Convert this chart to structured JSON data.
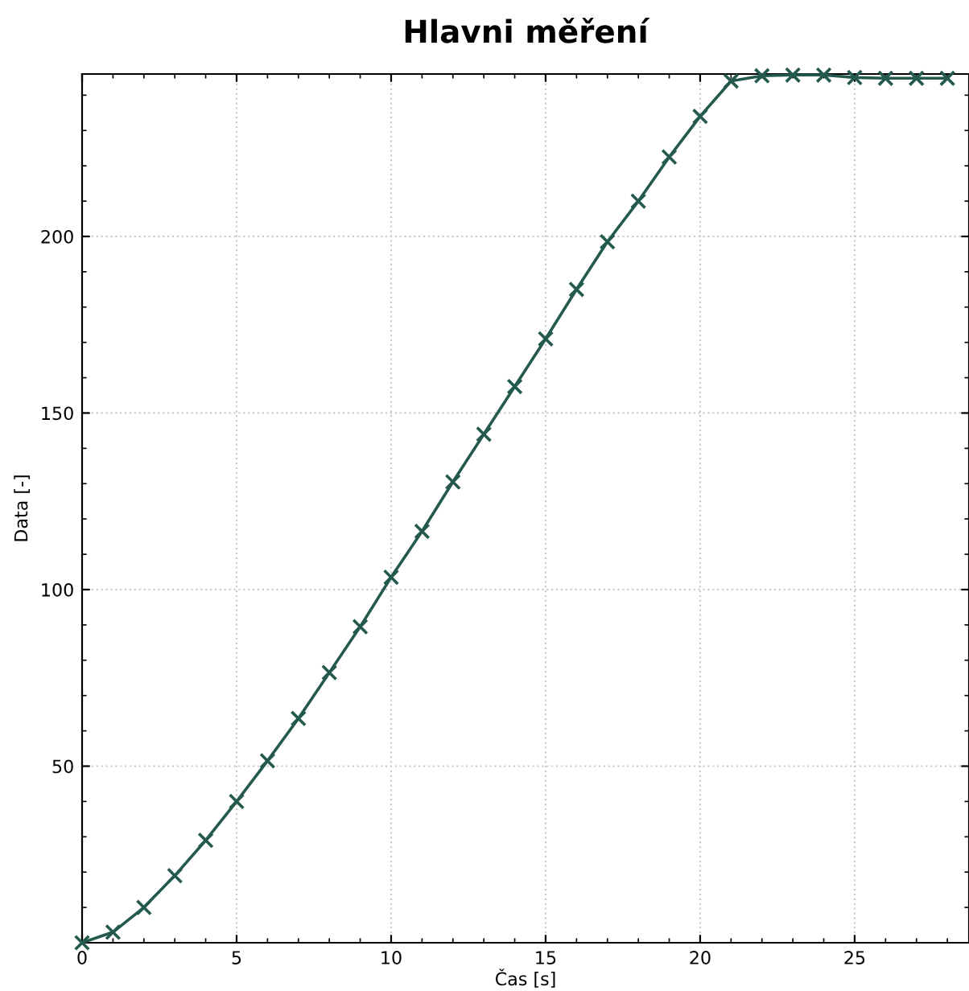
{
  "chart_data": {
    "type": "line",
    "title": "Hlavni měření",
    "xlabel": "Čas [s]",
    "ylabel": "Data [-]",
    "x": [
      0,
      1,
      2,
      3,
      4,
      5,
      6,
      7,
      8,
      9,
      10,
      11,
      12,
      13,
      14,
      15,
      16,
      17,
      18,
      19,
      20,
      21,
      22,
      23,
      24,
      25,
      26,
      27,
      28
    ],
    "series": [
      {
        "color": "#245a4e",
        "values": [
          0,
          3,
          10,
          19,
          29,
          40,
          51.5,
          63.5,
          76.5,
          89.5,
          103.5,
          116.5,
          130.5,
          144,
          157.5,
          171,
          185,
          198.5,
          210,
          222.5,
          234,
          244,
          245.5,
          245.7,
          245.7,
          245,
          244.8,
          244.8,
          244.8
        ]
      }
    ],
    "xlim": [
      0,
      28.7
    ],
    "ylim": [
      0,
      246
    ],
    "xticks": [
      0,
      5,
      10,
      15,
      20,
      25
    ],
    "yticks": [
      50,
      100,
      150,
      200
    ],
    "grid": true,
    "marker": "cross",
    "line_style": "solid",
    "legend": false
  }
}
